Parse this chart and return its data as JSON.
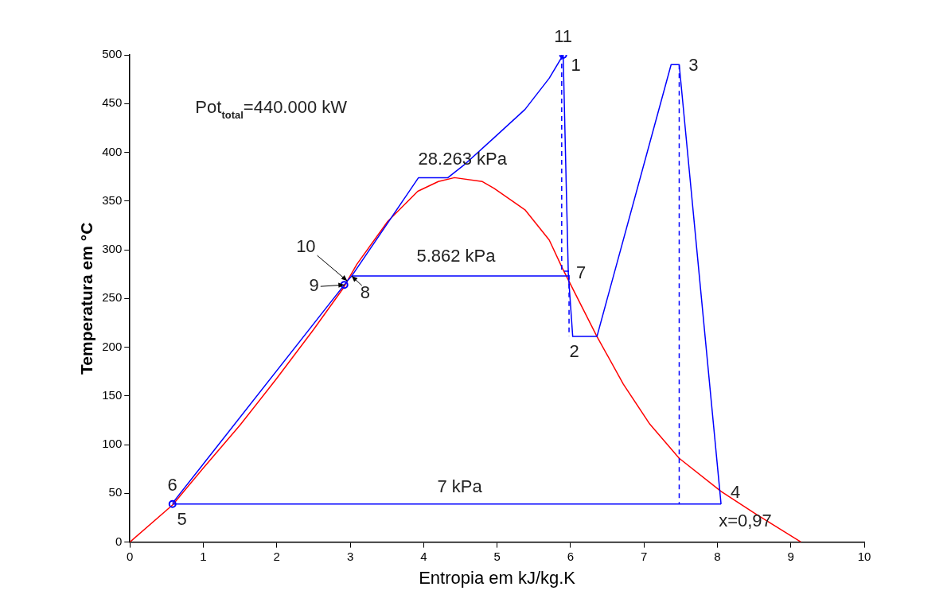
{
  "chart_data": {
    "type": "line",
    "xlabel": "Entropia em kJ/kg.K",
    "ylabel": "Temperatura em °C",
    "xlim": [
      0,
      10
    ],
    "xticks": [
      0,
      1,
      2,
      3,
      4,
      5,
      6,
      7,
      8,
      9,
      10
    ],
    "ylim": [
      0,
      500
    ],
    "yticks": [
      0,
      50,
      100,
      150,
      200,
      250,
      300,
      350,
      400,
      450,
      500
    ],
    "grid": false,
    "legend": false,
    "series": [
      {
        "color": "#ff0000",
        "x": [
          0,
          0.58,
          1,
          1.5,
          2,
          2.5,
          2.9,
          3.09,
          3.51,
          3.92,
          4.2,
          4.42,
          4.8,
          4.96,
          5.38,
          5.71,
          5.89,
          6.36,
          6.72,
          7.08,
          7.48,
          8.05,
          8.52,
          9.14
        ],
        "values": [
          0,
          38,
          76,
          120,
          168,
          218,
          260,
          285,
          329,
          360,
          370,
          374,
          370,
          363,
          341,
          310,
          281,
          211,
          162,
          121,
          86,
          52,
          29,
          0
        ]
      },
      {
        "color": "#0000ff",
        "x": [
          0.58,
          2.92,
          2.96,
          3.02,
          3.93,
          4.33,
          4.55,
          4.96,
          5.38,
          5.71,
          5.9,
          5.97,
          6.03,
          6.36,
          7.37,
          7.48,
          8.05
        ],
        "values": [
          40,
          264,
          268,
          273,
          374,
          374,
          387,
          415,
          444,
          476,
          500,
          276,
          211,
          211,
          490,
          490,
          39
        ]
      },
      {
        "color": "#0000ff",
        "x": [
          0.58,
          8.05,
          null,
          3.02,
          5.97
        ],
        "values": [
          39,
          39,
          null,
          273,
          273
        ]
      },
      {
        "color": "#0000ff",
        "line_style": "dashed",
        "x": [
          5.88,
          5.88,
          5.98,
          5.98,
          null,
          7.48,
          7.48
        ],
        "values": [
          500,
          278,
          278,
          211,
          null,
          490,
          39
        ]
      },
      {
        "type": "scatter",
        "marker": "circle",
        "color": "#0000ff",
        "x": [
          5.9,
          0.58,
          2.92
        ],
        "values": [
          500,
          39,
          264
        ]
      }
    ],
    "annotations": [
      "Pot$_{total}$=440.000 kW",
      {
        "text": "11",
        "x": 5.9,
        "y": 500
      },
      {
        "text": "1",
        "x": 5.9,
        "y": 500
      },
      {
        "text": "3",
        "x": 7.48,
        "y": 490
      },
      {
        "text": "7",
        "x": 5.97,
        "y": 276
      },
      {
        "text": "2",
        "x": 6.03,
        "y": 211
      },
      {
        "text": "4",
        "x": 8.05,
        "y": 39
      },
      {
        "text": "5",
        "x": 0.58,
        "y": 39
      },
      {
        "text": "6",
        "x": 0.58,
        "y": 40
      },
      {
        "text": "10",
        "x": 2.96,
        "y": 268
      },
      {
        "text": "9",
        "x": 2.92,
        "y": 264
      },
      {
        "text": "8",
        "x": 3.02,
        "y": 273
      },
      {
        "text": "28.263 kPa",
        "x": 4.53,
        "y": 374
      },
      {
        "text": "5.862 kPa",
        "x": 4.44,
        "y": 273
      },
      "7 kPa",
      "x=0,97"
    ]
  }
}
